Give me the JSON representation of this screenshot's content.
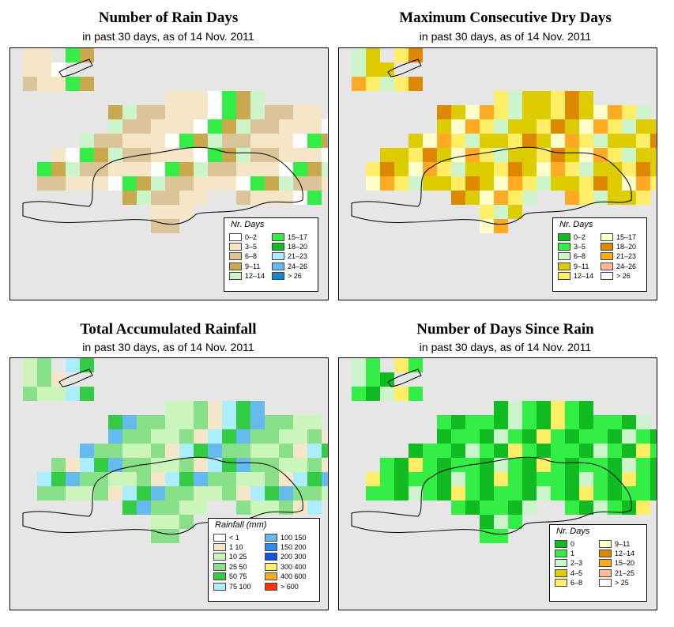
{
  "panels": [
    {
      "title": "Number of Rain Days",
      "subtitle": "in past 30 days, as of  14 Nov. 2011",
      "legend": {
        "title": "Nr. Days",
        "items": [
          {
            "label": "0–2",
            "color": "#ffffff"
          },
          {
            "label": "3–5",
            "color": "#f5e6c8"
          },
          {
            "label": "6–8",
            "color": "#dcc499"
          },
          {
            "label": "9–11",
            "color": "#c9a84e"
          },
          {
            "label": "12–14",
            "color": "#ccf5cc"
          },
          {
            "label": "15–17",
            "color": "#33ee44"
          },
          {
            "label": "18–20",
            "color": "#11bb22"
          },
          {
            "label": "21–23",
            "color": "#aaeeff"
          },
          {
            "label": "24–26",
            "color": "#66bbee"
          },
          {
            "label": "> 26",
            "color": "#1188cc"
          }
        ]
      }
    },
    {
      "title": "Maximum Consecutive Dry Days",
      "subtitle": "in past 30 days, as of  14 Nov. 2011",
      "legend": {
        "title": "Nr. Days",
        "items": [
          {
            "label": "0–2",
            "color": "#11bb22"
          },
          {
            "label": "3–5",
            "color": "#33ee44"
          },
          {
            "label": "6–8",
            "color": "#ccf5cc"
          },
          {
            "label": "9–11",
            "color": "#ddcc00"
          },
          {
            "label": "12–14",
            "color": "#ffee66"
          },
          {
            "label": "15–17",
            "color": "#ffffcc"
          },
          {
            "label": "18–20",
            "color": "#dd8800"
          },
          {
            "label": "21–23",
            "color": "#ffaa22"
          },
          {
            "label": "24–26",
            "color": "#ffbb99"
          },
          {
            "label": "> 26",
            "color": "#ffffff"
          }
        ]
      }
    },
    {
      "title": "Total Accumulated Rainfall",
      "subtitle": "in past 30 days, as of  14 Nov. 2011",
      "legend": {
        "title": "Rainfall (mm)",
        "items": [
          {
            "label": "< 1",
            "color": "#ffffff"
          },
          {
            "label": "1   10",
            "color": "#f5e6c8"
          },
          {
            "label": "10   25",
            "color": "#ccf5bb"
          },
          {
            "label": "25   50",
            "color": "#88e088"
          },
          {
            "label": "50   75",
            "color": "#33cc44"
          },
          {
            "label": "75   100",
            "color": "#aaeeff"
          },
          {
            "label": "100   150",
            "color": "#66bbee"
          },
          {
            "label": "150   200",
            "color": "#3388ee"
          },
          {
            "label": "200   300",
            "color": "#1155dd"
          },
          {
            "label": "300   400",
            "color": "#ffee66"
          },
          {
            "label": "400   600",
            "color": "#ffaa22"
          },
          {
            "label": "> 600",
            "color": "#ff3300"
          }
        ]
      }
    },
    {
      "title": "Number of Days Since Rain",
      "subtitle": "in past 30 days, as of  14 Nov. 2011",
      "legend": {
        "title": "Nr. Days",
        "items": [
          {
            "label": "0",
            "color": "#11bb22"
          },
          {
            "label": "1",
            "color": "#33ee44"
          },
          {
            "label": "2–3",
            "color": "#ccf5cc"
          },
          {
            "label": "4–5",
            "color": "#ddcc00"
          },
          {
            "label": "6–8",
            "color": "#ffee66"
          },
          {
            "label": "9–11",
            "color": "#ffffcc"
          },
          {
            "label": "12–14",
            "color": "#dd8800"
          },
          {
            "label": "15–20",
            "color": "#ffaa22"
          },
          {
            "label": "21–25",
            "color": "#ffbb99"
          },
          {
            "label": "> 25",
            "color": "#ffffff"
          }
        ]
      }
    }
  ]
}
